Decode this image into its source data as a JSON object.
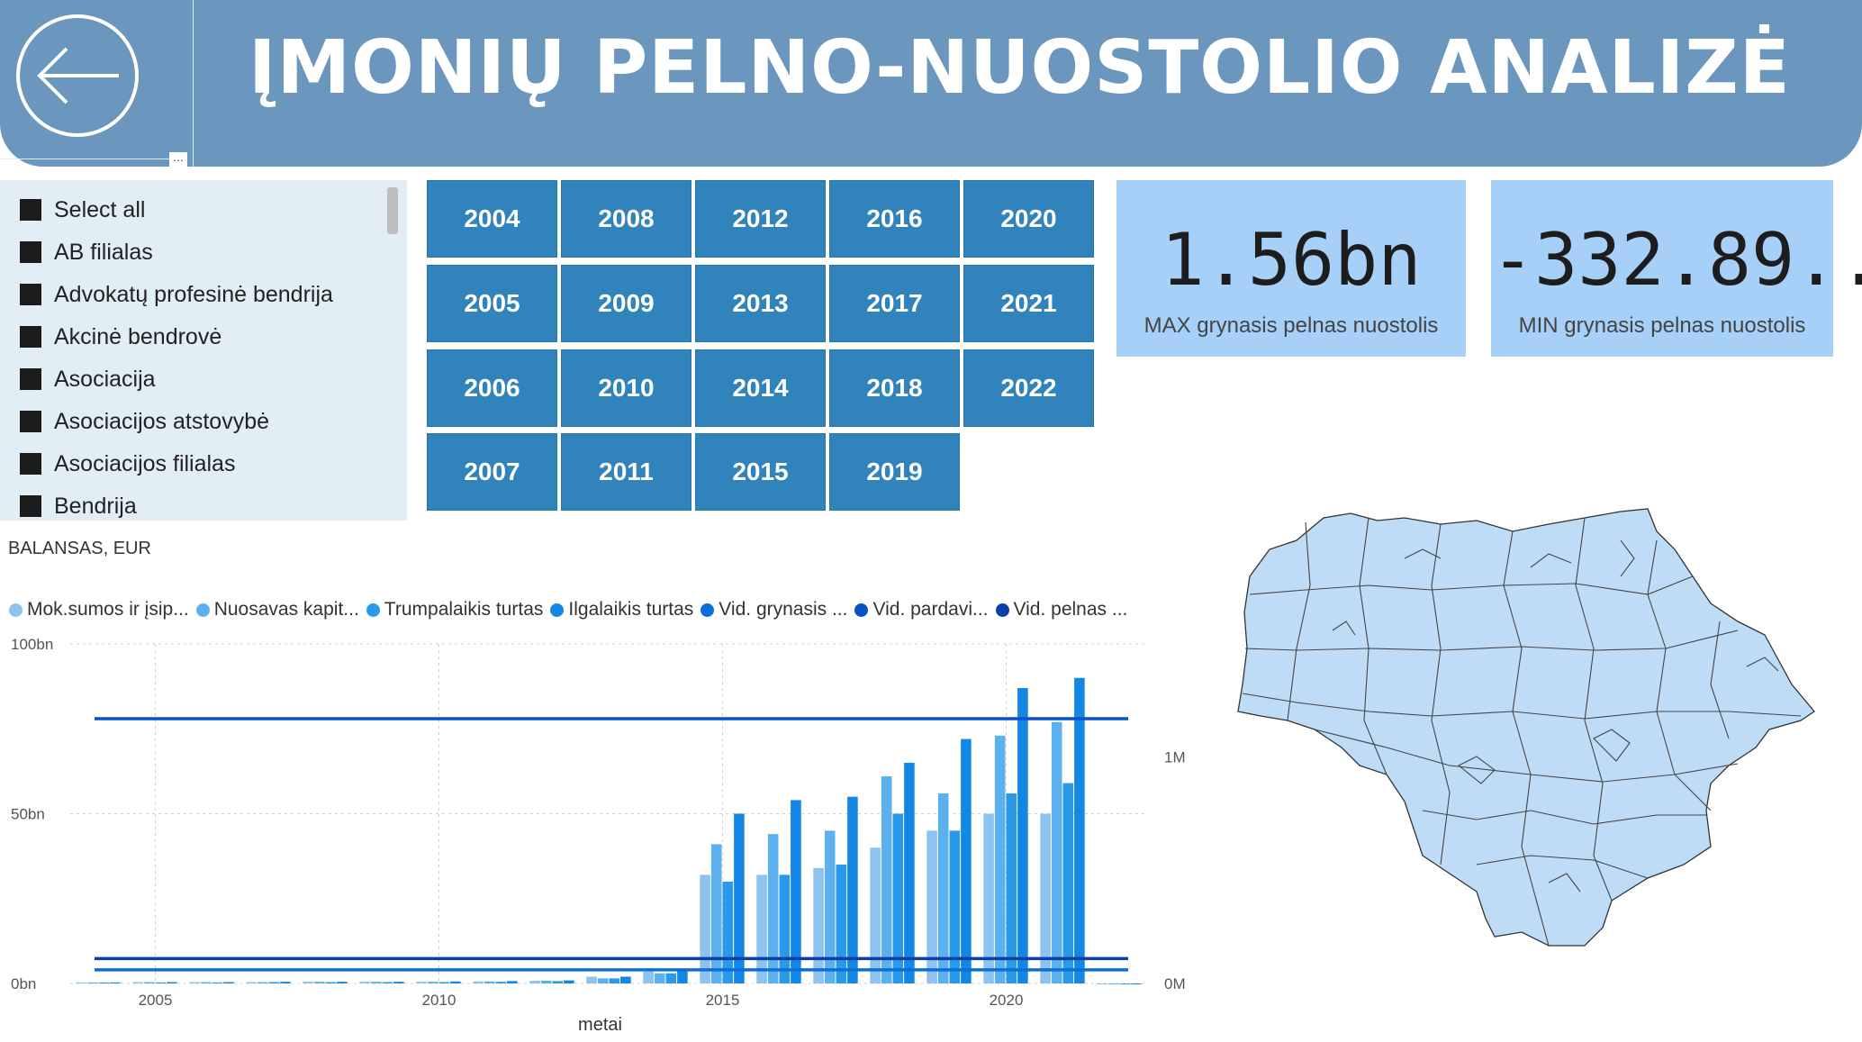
{
  "header": {
    "title": "ĮMONIŲ PELNO-NUOSTOLIO ANALIZĖ",
    "back_icon": "arrow-left-circle-icon",
    "more_label": "..."
  },
  "slicer": {
    "items": [
      "Select all",
      "AB filialas",
      "Advokatų profesinė bendrija",
      "Akcinė bendrovė",
      "Asociacija",
      "Asociacijos atstovybė",
      "Asociacijos filialas",
      "Bendrija"
    ]
  },
  "years": [
    [
      "2004",
      "2008",
      "2012",
      "2016",
      "2020"
    ],
    [
      "2005",
      "2009",
      "2013",
      "2017",
      "2021"
    ],
    [
      "2006",
      "2010",
      "2014",
      "2018",
      "2022"
    ],
    [
      "2007",
      "2011",
      "2015",
      "2019"
    ]
  ],
  "cards": {
    "max": {
      "value": "1.56bn",
      "label": "MAX grynasis pelnas nuostolis"
    },
    "min": {
      "value": "-332.89...",
      "label": "MIN grynasis pelnas nuostolis"
    }
  },
  "colors": {
    "header": "#6b97be",
    "year_button": "#3183bb",
    "card": "#a6d0f7",
    "slicer_bg": "#e1eef5",
    "map_fill": "#bfdcf7"
  },
  "chart_data": {
    "type": "bar",
    "title": "BALANSAS, EUR",
    "xlabel": "metai",
    "ylabel": "",
    "ylim": [
      0,
      100
    ],
    "y_unit": "bn",
    "y_ticks": [
      "0bn",
      "50bn",
      "100bn"
    ],
    "y2_ticks": [
      "0M",
      "1M"
    ],
    "ylim2": [
      0,
      1.5
    ],
    "x_ticks": [
      "2005",
      "2010",
      "2015",
      "2020"
    ],
    "legend": [
      {
        "name": "Mok.sumos ir įsip...",
        "color": "#8ec3f0"
      },
      {
        "name": "Nuosavas kapit...",
        "color": "#5cb0ee"
      },
      {
        "name": "Trumpalaikis turtas",
        "color": "#2a9ae8"
      },
      {
        "name": "Ilgalaikis turtas",
        "color": "#1487e5"
      },
      {
        "name": "Vid. grynasis ...",
        "color": "#0a6fd9"
      },
      {
        "name": "Vid. pardavi...",
        "color": "#0a52cc"
      },
      {
        "name": "Vid. pelnas ...",
        "color": "#0b3fa8"
      }
    ],
    "categories": [
      "2004",
      "2005",
      "2006",
      "2007",
      "2008",
      "2009",
      "2010",
      "2011",
      "2012",
      "2013",
      "2014",
      "2015",
      "2016",
      "2017",
      "2018",
      "2019",
      "2020",
      "2021",
      "2022"
    ],
    "series": [
      {
        "name": "Mok.sumos ir įsip...",
        "values": [
          0.3,
          0.4,
          0.4,
          0.4,
          0.5,
          0.5,
          0.5,
          0.6,
          0.8,
          2.0,
          3.5,
          32,
          32,
          34,
          40,
          45,
          50,
          50,
          0
        ]
      },
      {
        "name": "Nuosavas kapit...",
        "values": [
          0.3,
          0.4,
          0.4,
          0.4,
          0.5,
          0.5,
          0.5,
          0.6,
          0.8,
          1.5,
          3.0,
          41,
          44,
          45,
          61,
          56,
          73,
          77,
          0
        ]
      },
      {
        "name": "Trumpalaikis turtas",
        "values": [
          0.3,
          0.3,
          0.3,
          0.4,
          0.4,
          0.4,
          0.4,
          0.5,
          0.7,
          1.5,
          3.0,
          30,
          32,
          35,
          50,
          45,
          56,
          59,
          0
        ]
      },
      {
        "name": "Ilgalaikis turtas",
        "values": [
          0.3,
          0.4,
          0.4,
          0.5,
          0.5,
          0.5,
          0.6,
          0.7,
          0.9,
          2.0,
          4.0,
          50,
          54,
          55,
          65,
          72,
          87,
          90,
          0
        ]
      }
    ],
    "lines": [
      {
        "name": "Vid. grynasis ...",
        "axis": "y2",
        "value": 0.06
      },
      {
        "name": "Vid. pardavi...",
        "axis": "y2",
        "value": 1.17
      },
      {
        "name": "Vid. pelnas ...",
        "axis": "y2",
        "value": 0.11
      }
    ]
  }
}
